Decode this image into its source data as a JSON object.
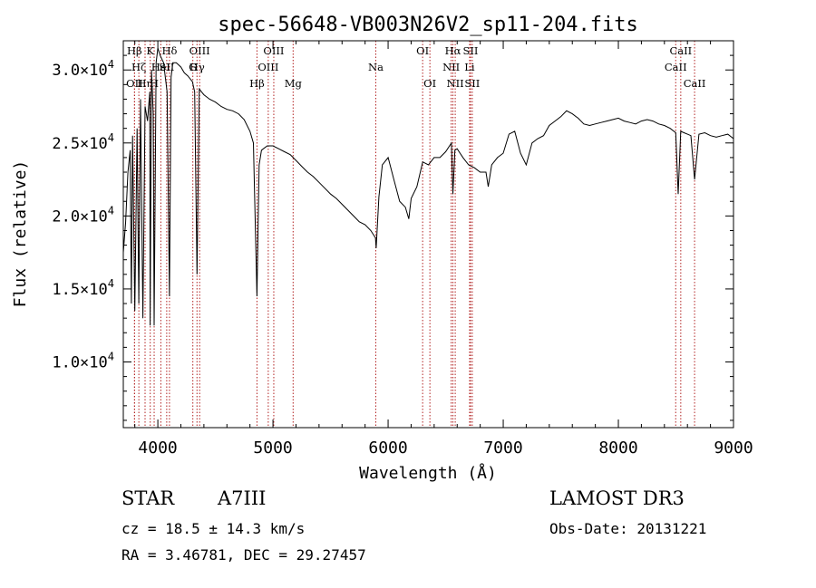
{
  "chart_data": {
    "type": "line",
    "title": "spec-56648-VB003N26V2_sp11-204.fits",
    "xlabel": "Wavelength (Å)",
    "ylabel": "Flux (relative)",
    "xlim": [
      3700,
      9000
    ],
    "ylim": [
      5500,
      32000
    ],
    "x_ticks": [
      4000,
      5000,
      6000,
      7000,
      8000,
      9000
    ],
    "x_tick_labels": [
      "4000",
      "5000",
      "6000",
      "7000",
      "8000",
      "9000"
    ],
    "y_ticks": [
      10000,
      15000,
      20000,
      25000,
      30000
    ],
    "y_tick_labels": [
      {
        "m": "1.0×10",
        "e": "4"
      },
      {
        "m": "1.5×10",
        "e": "4"
      },
      {
        "m": "2.0×10",
        "e": "4"
      },
      {
        "m": "2.5×10",
        "e": "4"
      },
      {
        "m": "3.0×10",
        "e": "4"
      }
    ],
    "line_color": "#000000",
    "marker_color": "#b22222",
    "spectrum": {
      "x": [
        3700,
        3720,
        3740,
        3760,
        3770,
        3780,
        3800,
        3820,
        3835,
        3850,
        3870,
        3889,
        3910,
        3930,
        3933,
        3945,
        3960,
        3968,
        3985,
        4000,
        4020,
        4050,
        4080,
        4101,
        4115,
        4130,
        4160,
        4200,
        4230,
        4260,
        4300,
        4320,
        4340,
        4360,
        4380,
        4400,
        4450,
        4500,
        4550,
        4600,
        4650,
        4700,
        4750,
        4800,
        4830,
        4861,
        4880,
        4900,
        4950,
        5000,
        5050,
        5100,
        5150,
        5200,
        5250,
        5300,
        5350,
        5400,
        5450,
        5500,
        5550,
        5600,
        5650,
        5700,
        5750,
        5800,
        5850,
        5890,
        5896,
        5920,
        5950,
        6000,
        6050,
        6100,
        6150,
        6180,
        6200,
        6250,
        6300,
        6350,
        6400,
        6450,
        6500,
        6550,
        6563,
        6580,
        6600,
        6650,
        6700,
        6750,
        6800,
        6850,
        6870,
        6900,
        6950,
        7000,
        7050,
        7100,
        7150,
        7200,
        7250,
        7300,
        7350,
        7400,
        7450,
        7500,
        7550,
        7600,
        7650,
        7700,
        7750,
        7800,
        7850,
        7900,
        7950,
        8000,
        8050,
        8100,
        8150,
        8200,
        8250,
        8300,
        8350,
        8400,
        8450,
        8498,
        8520,
        8542,
        8570,
        8600,
        8630,
        8662,
        8700,
        8750,
        8800,
        8850,
        8900,
        8950,
        9000
      ],
      "y": [
        17500,
        19500,
        23000,
        24500,
        14000,
        25500,
        13500,
        26000,
        14000,
        28000,
        13000,
        27500,
        26500,
        28500,
        12500,
        30000,
        27000,
        12500,
        30500,
        31500,
        31000,
        30500,
        28500,
        14500,
        29500,
        30500,
        30500,
        30200,
        29800,
        29600,
        29200,
        28500,
        16000,
        28700,
        28500,
        28300,
        28000,
        27800,
        27500,
        27300,
        27200,
        27000,
        26600,
        25800,
        25000,
        14500,
        23500,
        24500,
        24800,
        24800,
        24600,
        24400,
        24200,
        23800,
        23400,
        23000,
        22700,
        22300,
        21900,
        21500,
        21200,
        20800,
        20400,
        20000,
        19600,
        19400,
        19000,
        18500,
        17800,
        21300,
        23500,
        24000,
        22500,
        21000,
        20600,
        19800,
        21200,
        22000,
        23700,
        23500,
        24000,
        24000,
        24400,
        25000,
        21500,
        24500,
        24600,
        24000,
        23500,
        23300,
        23000,
        23000,
        22000,
        23500,
        24000,
        24300,
        25600,
        25800,
        24300,
        23500,
        25000,
        25300,
        25500,
        26200,
        26500,
        26800,
        27200,
        27000,
        26700,
        26300,
        26200,
        26300,
        26400,
        26500,
        26600,
        26700,
        26500,
        26400,
        26300,
        26500,
        26600,
        26500,
        26300,
        26200,
        26000,
        25700,
        21500,
        25800,
        25700,
        25600,
        25500,
        22500,
        25600,
        25700,
        25500,
        25400,
        25500,
        25600,
        25300
      ]
    },
    "lines": [
      {
        "x": 3798,
        "label": "OII",
        "row": 2
      },
      {
        "x": 3797,
        "label": "Hβ",
        "row": 0
      },
      {
        "x": 3835,
        "label": "Hζ",
        "row": 1
      },
      {
        "x": 3889,
        "label": "Hη",
        "row": 2
      },
      {
        "x": 3934,
        "label": "K",
        "row": 0
      },
      {
        "x": 3968,
        "label": "H",
        "row": 2
      },
      {
        "x": 4026,
        "label": "HeI",
        "row": 1
      },
      {
        "x": 4101,
        "label": "Hδ",
        "row": 0
      },
      {
        "x": 4077,
        "label": "SII",
        "row": 1
      },
      {
        "x": 4304,
        "label": "G",
        "row": 1
      },
      {
        "x": 4340,
        "label": "Hγ",
        "row": 1
      },
      {
        "x": 4363,
        "label": "OIII",
        "row": 0
      },
      {
        "x": 4861,
        "label": "Hβ",
        "row": 2
      },
      {
        "x": 4959,
        "label": "OIII",
        "row": 1
      },
      {
        "x": 5007,
        "label": "OIII",
        "row": 0
      },
      {
        "x": 5175,
        "label": "Mg",
        "row": 2
      },
      {
        "x": 5893,
        "label": "Na",
        "row": 1
      },
      {
        "x": 6300,
        "label": "OI",
        "row": 0
      },
      {
        "x": 6363,
        "label": "OI",
        "row": 2
      },
      {
        "x": 6548,
        "label": "NII",
        "row": 1
      },
      {
        "x": 6563,
        "label": "Hα",
        "row": 0
      },
      {
        "x": 6583,
        "label": "NII",
        "row": 2
      },
      {
        "x": 6708,
        "label": "Li",
        "row": 1
      },
      {
        "x": 6716,
        "label": "SII",
        "row": 0
      },
      {
        "x": 6731,
        "label": "SII",
        "row": 2
      },
      {
        "x": 8498,
        "label": "CaII",
        "row": 1
      },
      {
        "x": 8542,
        "label": "CaII",
        "row": 0
      },
      {
        "x": 8662,
        "label": "CaII",
        "row": 2
      }
    ]
  },
  "info": {
    "object_class": "STAR",
    "subclass": "A7III",
    "survey": "LAMOST DR3",
    "cz": "cz = 18.5 ± 14.3 km/s",
    "obs_date": "Obs-Date: 20131221",
    "coords": "RA =   3.46781, DEC =  29.27457"
  }
}
